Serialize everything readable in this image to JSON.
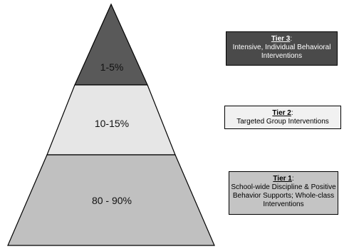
{
  "tiers": [
    {
      "percent": "1-5%",
      "title": "Tier 3",
      "colon": ":",
      "description": "Intensive, Individual Behavioral Interventions",
      "fill": "#595959",
      "box_fill": "#4a4a4a"
    },
    {
      "percent": "10-15%",
      "title": "Tier 2",
      "colon": ":",
      "description": "Targeted Group Interventions",
      "fill": "#e6e6e6",
      "box_fill": "#f1f1f1"
    },
    {
      "percent": "80 - 90%",
      "title": "Tier 1",
      "colon": ":",
      "description": "School-wide Discipline & Positive Behavior Supports; Whole-class Interventions",
      "fill": "#c0c0c0",
      "box_fill": "#c4c4c4"
    }
  ]
}
